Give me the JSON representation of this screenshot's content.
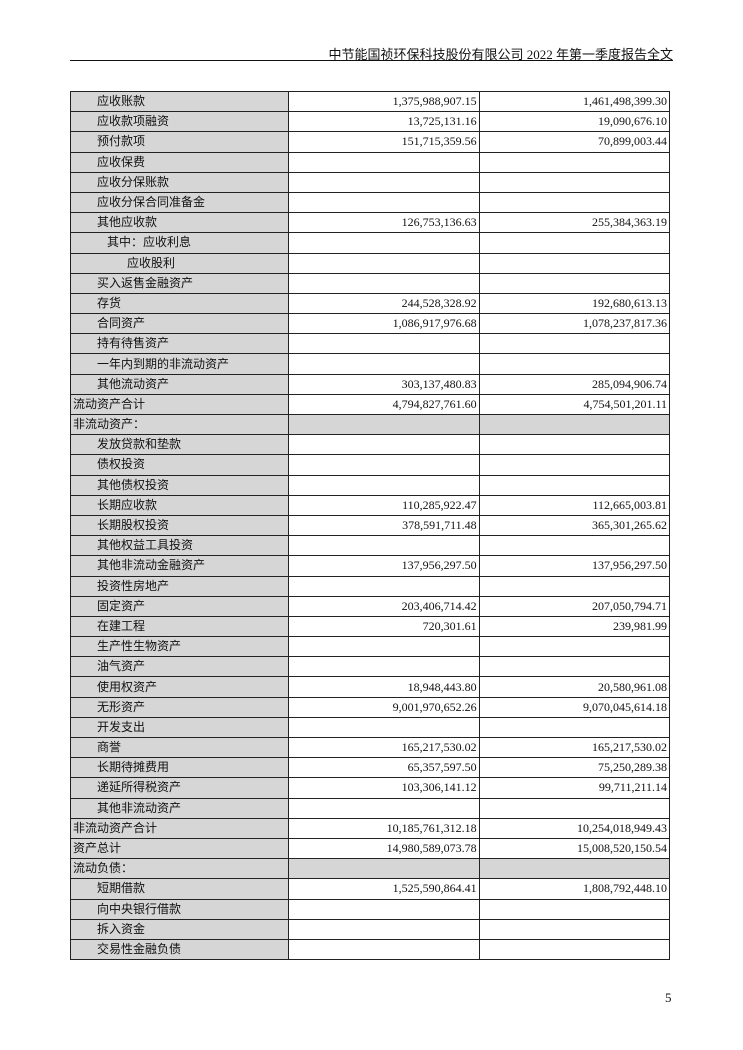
{
  "header": {
    "title": "中节能国祯环保科技股份有限公司 2022 年第一季度报告全文"
  },
  "rows": [
    {
      "label": "应收账款",
      "a": "1,375,988,907.15",
      "b": "1,461,498,399.30",
      "k": ""
    },
    {
      "label": "应收款项融资",
      "a": "13,725,131.16",
      "b": "19,090,676.10",
      "k": ""
    },
    {
      "label": "预付款项",
      "a": "151,715,359.56",
      "b": "70,899,003.44",
      "k": ""
    },
    {
      "label": "应收保费",
      "a": "",
      "b": "",
      "k": ""
    },
    {
      "label": "应收分保账款",
      "a": "",
      "b": "",
      "k": ""
    },
    {
      "label": "应收分保合同准备金",
      "a": "",
      "b": "",
      "k": ""
    },
    {
      "label": "其他应收款",
      "a": "126,753,136.63",
      "b": "255,384,363.19",
      "k": ""
    },
    {
      "label": "其中：应收利息",
      "a": "",
      "b": "",
      "k": "i1"
    },
    {
      "label": "应收股利",
      "a": "",
      "b": "",
      "k": "i2"
    },
    {
      "label": "买入返售金融资产",
      "a": "",
      "b": "",
      "k": ""
    },
    {
      "label": "存货",
      "a": "244,528,328.92",
      "b": "192,680,613.13",
      "k": ""
    },
    {
      "label": "合同资产",
      "a": "1,086,917,976.68",
      "b": "1,078,237,817.36",
      "k": ""
    },
    {
      "label": "持有待售资产",
      "a": "",
      "b": "",
      "k": ""
    },
    {
      "label": "一年内到期的非流动资产",
      "a": "",
      "b": "",
      "k": ""
    },
    {
      "label": "其他流动资产",
      "a": "303,137,480.83",
      "b": "285,094,906.74",
      "k": ""
    },
    {
      "label": "流动资产合计",
      "a": "4,794,827,761.60",
      "b": "4,754,501,201.11",
      "k": "t"
    },
    {
      "label": "非流动资产：",
      "a": "",
      "b": "",
      "k": "sec"
    },
    {
      "label": "发放贷款和垫款",
      "a": "",
      "b": "",
      "k": ""
    },
    {
      "label": "债权投资",
      "a": "",
      "b": "",
      "k": ""
    },
    {
      "label": "其他债权投资",
      "a": "",
      "b": "",
      "k": ""
    },
    {
      "label": "长期应收款",
      "a": "110,285,922.47",
      "b": "112,665,003.81",
      "k": ""
    },
    {
      "label": "长期股权投资",
      "a": "378,591,711.48",
      "b": "365,301,265.62",
      "k": ""
    },
    {
      "label": "其他权益工具投资",
      "a": "",
      "b": "",
      "k": ""
    },
    {
      "label": "其他非流动金融资产",
      "a": "137,956,297.50",
      "b": "137,956,297.50",
      "k": ""
    },
    {
      "label": "投资性房地产",
      "a": "",
      "b": "",
      "k": ""
    },
    {
      "label": "固定资产",
      "a": "203,406,714.42",
      "b": "207,050,794.71",
      "k": ""
    },
    {
      "label": "在建工程",
      "a": "720,301.61",
      "b": "239,981.99",
      "k": ""
    },
    {
      "label": "生产性生物资产",
      "a": "",
      "b": "",
      "k": ""
    },
    {
      "label": "油气资产",
      "a": "",
      "b": "",
      "k": ""
    },
    {
      "label": "使用权资产",
      "a": "18,948,443.80",
      "b": "20,580,961.08",
      "k": ""
    },
    {
      "label": "无形资产",
      "a": "9,001,970,652.26",
      "b": "9,070,045,614.18",
      "k": ""
    },
    {
      "label": "开发支出",
      "a": "",
      "b": "",
      "k": ""
    },
    {
      "label": "商誉",
      "a": "165,217,530.02",
      "b": "165,217,530.02",
      "k": ""
    },
    {
      "label": "长期待摊费用",
      "a": "65,357,597.50",
      "b": "75,250,289.38",
      "k": ""
    },
    {
      "label": "递延所得税资产",
      "a": "103,306,141.12",
      "b": "99,711,211.14",
      "k": ""
    },
    {
      "label": "其他非流动资产",
      "a": "",
      "b": "",
      "k": ""
    },
    {
      "label": "非流动资产合计",
      "a": "10,185,761,312.18",
      "b": "10,254,018,949.43",
      "k": "t"
    },
    {
      "label": "资产总计",
      "a": "14,980,589,073.78",
      "b": "15,008,520,150.54",
      "k": "t"
    },
    {
      "label": "流动负债：",
      "a": "",
      "b": "",
      "k": "sec"
    },
    {
      "label": "短期借款",
      "a": "1,525,590,864.41",
      "b": "1,808,792,448.10",
      "k": ""
    },
    {
      "label": "向中央银行借款",
      "a": "",
      "b": "",
      "k": ""
    },
    {
      "label": "拆入资金",
      "a": "",
      "b": "",
      "k": ""
    },
    {
      "label": "交易性金融负债",
      "a": "",
      "b": "",
      "k": ""
    }
  ],
  "page_number": "5"
}
